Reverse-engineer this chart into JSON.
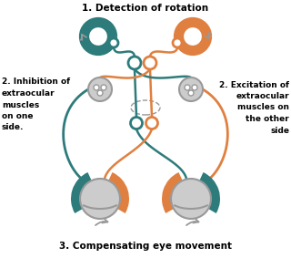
{
  "title_top": "1. Detection of rotation",
  "title_bottom": "3. Compensating eye movement",
  "label_left": "2. Inhibition of\nextraocular\nmuscles\non one\nside.",
  "label_right": "2. Excitation of\nextraocular\nmuscles on\nthe other\nside",
  "teal": "#2e7b7b",
  "orange": "#e08040",
  "gray_light": "#cccccc",
  "gray_mid": "#999999",
  "gray_dark": "#555555",
  "background": "#ffffff",
  "title_fontsize": 7.5,
  "label_fontsize": 6.5
}
